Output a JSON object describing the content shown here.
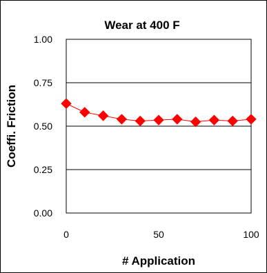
{
  "chart_data": {
    "type": "line",
    "title": "Wear at 400 F",
    "xlabel": "# Application",
    "ylabel": "Coeffi. Friction",
    "xlim": [
      0,
      100
    ],
    "ylim": [
      0,
      1
    ],
    "x_ticks": [
      "0",
      "50",
      "100"
    ],
    "y_ticks": [
      "0.00",
      "0.25",
      "0.50",
      "0.75",
      "1.00"
    ],
    "grid": "horizontal",
    "legend": "none",
    "series": [
      {
        "x": [
          0,
          10,
          20,
          30,
          40,
          50,
          60,
          70,
          80,
          90,
          100
        ],
        "y": [
          0.63,
          0.58,
          0.56,
          0.54,
          0.53,
          0.535,
          0.54,
          0.525,
          0.535,
          0.53,
          0.54
        ],
        "color": "#ff0000",
        "marker": "diamond"
      }
    ]
  }
}
